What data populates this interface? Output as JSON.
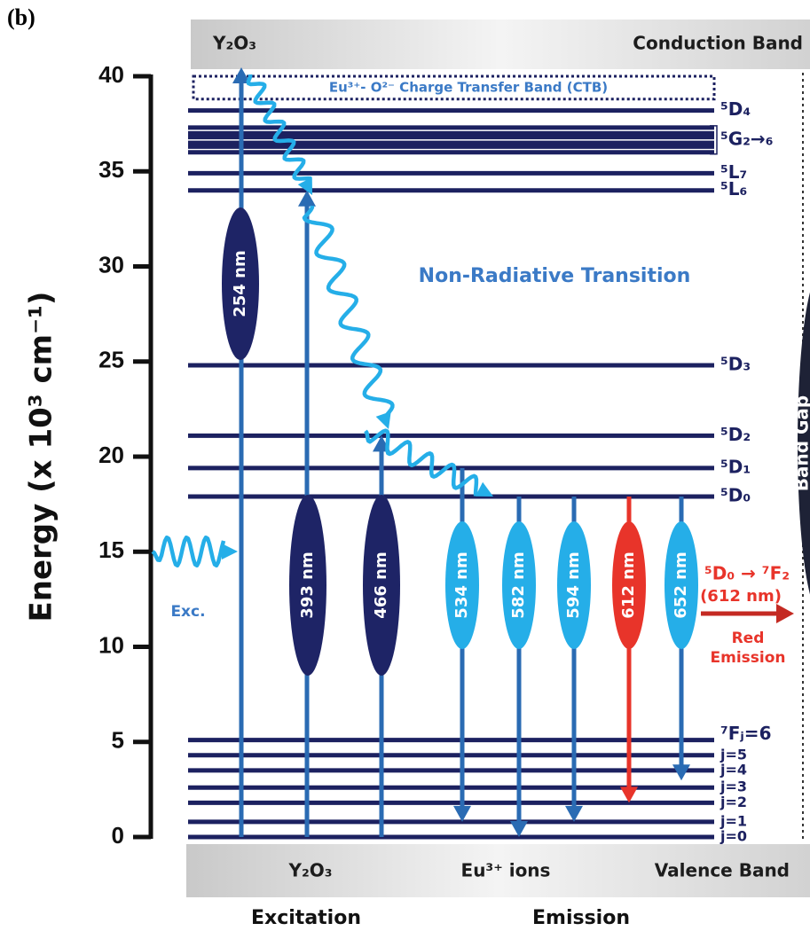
{
  "panel_label": "(b)",
  "top_band": {
    "left": "Y₂O₃",
    "right": "Conduction Band"
  },
  "bottom_band": {
    "left": "Y₂O₃",
    "middle": "Eu³⁺ ions",
    "right": "Valence Band"
  },
  "footer": {
    "left": "Excitation",
    "right": "Emission"
  },
  "axis": {
    "label": "Energy (x 10³ cm⁻¹)",
    "ylim": [
      0,
      40
    ],
    "yticks": [
      0,
      5,
      10,
      15,
      20,
      25,
      30,
      35,
      40
    ]
  },
  "ctb": {
    "label": "Eu³⁺- O²⁻ Charge Transfer Band (CTB)",
    "energies": [
      38.8,
      40
    ]
  },
  "levels": [
    {
      "label": "⁵D₄",
      "energy": 38.2
    },
    {
      "label": "⁵L₇",
      "energy": 34.9
    },
    {
      "label": "⁵L₆",
      "energy": 34.0
    },
    {
      "label": "⁵D₃",
      "energy": 24.8
    },
    {
      "label": "⁵D₂",
      "energy": 21.1
    },
    {
      "label": "⁵D₁",
      "energy": 19.4
    },
    {
      "label": "⁵D₀",
      "energy": 17.9
    }
  ],
  "g_levels": {
    "label": "⁵G₂→₆",
    "energies": [
      37.3,
      37.0,
      36.8,
      36.5,
      36.3,
      36.0
    ]
  },
  "f_levels": [
    {
      "label": "⁷Fⱼ=6",
      "energy": 5.1
    },
    {
      "label": "j=5",
      "energy": 4.3
    },
    {
      "label": "j=4",
      "energy": 3.5
    },
    {
      "label": "j=3",
      "energy": 2.6
    },
    {
      "label": "j=2",
      "energy": 1.8
    },
    {
      "label": "j=1",
      "energy": 0.8
    },
    {
      "label": "j=0",
      "energy": 0
    }
  ],
  "excitation": [
    "254 nm",
    "393 nm",
    "466 nm"
  ],
  "emission": [
    "534 nm",
    "582 nm",
    "594 nm",
    "612 nm",
    "652 nm"
  ],
  "annotations": {
    "non_radiative": "Non-Radiative Transition",
    "exc": "Exc.",
    "red_transition": "⁵D₀ → ⁷F₂",
    "red_wavelength": "(612 nm)",
    "red_emission_1": "Red",
    "red_emission_2": "Emission",
    "band_gap": "Band Gap"
  }
}
